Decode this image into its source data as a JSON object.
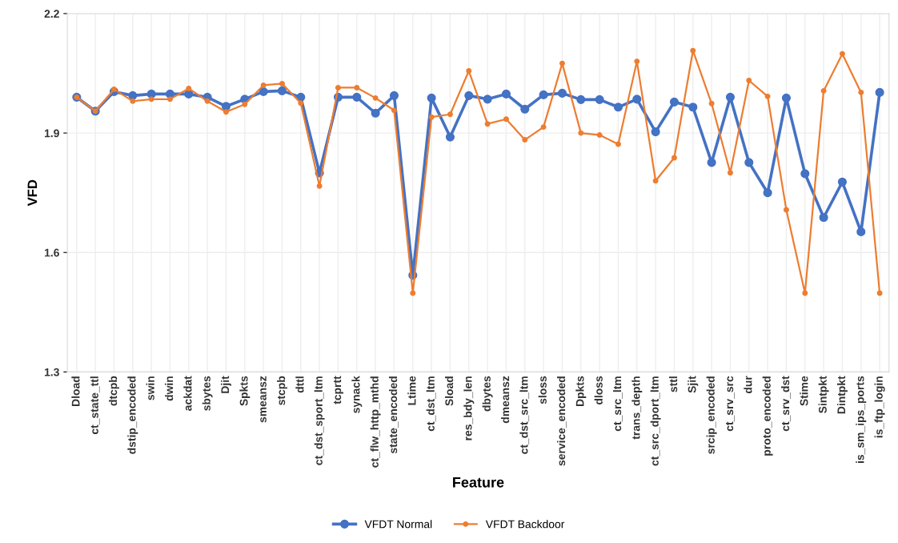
{
  "chart_data": {
    "type": "line",
    "xlabel": "Feature",
    "ylabel": "VFD",
    "categories": [
      "Dload",
      "ct_state_ttl",
      "dtcpb",
      "dstip_encoded",
      "swin",
      "dwin",
      "ackdat",
      "sbytes",
      "Djit",
      "Spkts",
      "smeansz",
      "stcpb",
      "dttl",
      "ct_dst_sport_ltm",
      "tcprtt",
      "synack",
      "ct_flw_http_mthd",
      "state_encoded",
      "Ltime",
      "ct_dst_ltm",
      "Sload",
      "res_bdy_len",
      "dbytes",
      "dmeansz",
      "ct_dst_src_ltm",
      "sloss",
      "service_encoded",
      "Dpkts",
      "dloss",
      "ct_src_ltm",
      "trans_depth",
      "ct_src_dport_ltm",
      "sttl",
      "Sjit",
      "srcip_encoded",
      "ct_srv_src",
      "dur",
      "proto_encoded",
      "ct_srv_dst",
      "Stime",
      "Sintpkt",
      "Dintpkt",
      "is_sm_ips_ports",
      "is_ftp_login"
    ],
    "series": [
      {
        "name": "VFDT Normal",
        "color": "#4472c4",
        "values": [
          1.99,
          1.955,
          2.004,
          1.994,
          1.998,
          1.998,
          1.998,
          1.99,
          1.967,
          1.985,
          2.004,
          2.006,
          1.99,
          1.8,
          1.99,
          1.99,
          1.95,
          1.994,
          1.543,
          1.988,
          1.89,
          1.994,
          1.985,
          1.998,
          1.96,
          1.996,
          2.0,
          1.984,
          1.984,
          1.965,
          1.985,
          1.903,
          1.978,
          1.965,
          1.826,
          1.99,
          1.826,
          1.75,
          1.988,
          1.798,
          1.688,
          1.777,
          1.652,
          2.002
        ]
      },
      {
        "name": "VFDT Backdoor",
        "color": "#ed7d31",
        "values": [
          1.99,
          1.955,
          2.01,
          1.98,
          1.985,
          1.985,
          2.012,
          1.98,
          1.953,
          1.972,
          2.02,
          2.024,
          1.975,
          1.767,
          2.014,
          2.014,
          1.988,
          1.957,
          1.498,
          1.94,
          1.947,
          2.056,
          1.923,
          1.935,
          1.883,
          1.915,
          2.075,
          1.9,
          1.895,
          1.872,
          2.08,
          1.78,
          1.838,
          2.107,
          1.974,
          1.8,
          2.032,
          1.992,
          1.707,
          1.498,
          2.006,
          2.099,
          2.002,
          1.498
        ]
      }
    ],
    "ylim": [
      1.3,
      2.2
    ],
    "yticks": [
      1.3,
      1.6,
      1.9,
      2.2
    ],
    "grid": true,
    "legend": "bottom",
    "marker": "circle",
    "line_style": "solid"
  }
}
